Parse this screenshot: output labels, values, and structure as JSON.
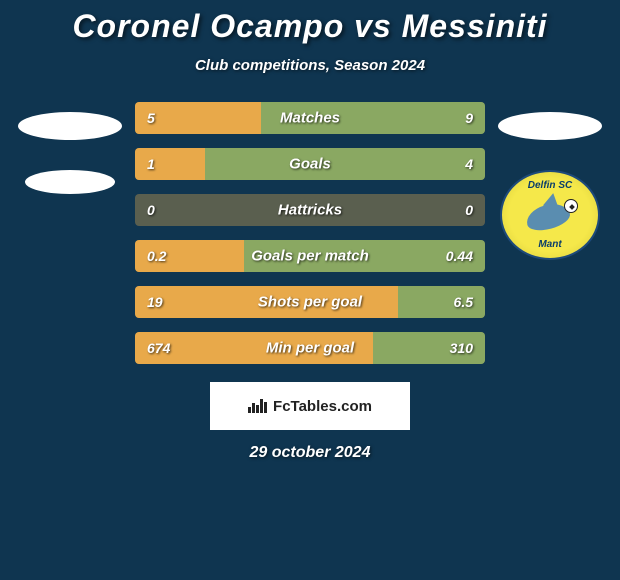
{
  "colors": {
    "bg": "#0f3550",
    "text": "#ffffff",
    "bar_left": "#e8a94a",
    "bar_right": "#8aa862",
    "bar_track": "#5a5f4f",
    "oval": "#ffffff",
    "brand_bg": "#ffffff",
    "brand_text": "#222222",
    "badge_bg": "#f5e84a"
  },
  "title": "Coronel Ocampo vs Messiniti",
  "subtitle": "Club competitions, Season 2024",
  "brand": "FcTables.com",
  "date": "29 october 2024",
  "badge": {
    "top": "Delfin SC",
    "bottom": "Mant"
  },
  "stats": [
    {
      "label": "Matches",
      "left_val": "5",
      "right_val": "9",
      "left_pct": 36
    },
    {
      "label": "Goals",
      "left_val": "1",
      "right_val": "4",
      "left_pct": 20
    },
    {
      "label": "Hattricks",
      "left_val": "0",
      "right_val": "0",
      "left_pct": 0
    },
    {
      "label": "Goals per match",
      "left_val": "0.2",
      "right_val": "0.44",
      "left_pct": 31
    },
    {
      "label": "Shots per goal",
      "left_val": "19",
      "right_val": "6.5",
      "left_pct": 75
    },
    {
      "label": "Min per goal",
      "left_val": "674",
      "right_val": "310",
      "left_pct": 68
    }
  ],
  "typography": {
    "title_fontsize": 32,
    "subtitle_fontsize": 15,
    "bar_label_fontsize": 15,
    "bar_val_fontsize": 14,
    "date_fontsize": 16
  }
}
